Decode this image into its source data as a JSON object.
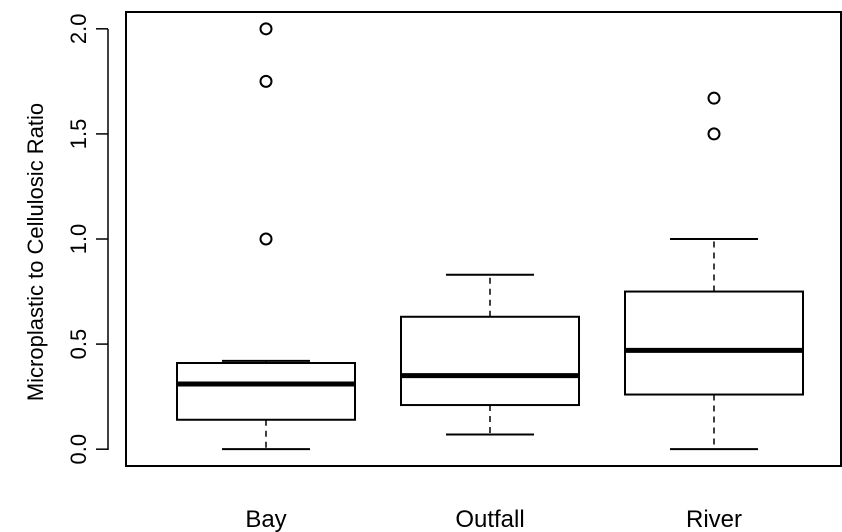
{
  "chart_data": {
    "type": "boxplot",
    "title": "",
    "xlabel": "",
    "ylabel": "Microplastic to Cellulosic Ratio",
    "ylim": [
      -0.08,
      2.08
    ],
    "yticks": [
      0.0,
      0.5,
      1.0,
      1.5,
      2.0
    ],
    "ytick_labels": [
      "0.0",
      "0.5",
      "1.0",
      "1.5",
      "2.0"
    ],
    "grid": false,
    "legend": "none",
    "categories": [
      "Bay",
      "Outfall",
      "River"
    ],
    "boxes": [
      {
        "category": "Bay",
        "whisker_low": 0.0,
        "q1": 0.14,
        "median": 0.31,
        "q3": 0.41,
        "whisker_high": 0.42,
        "outliers": [
          1.0,
          1.75,
          2.0
        ]
      },
      {
        "category": "Outfall",
        "whisker_low": 0.07,
        "q1": 0.21,
        "median": 0.35,
        "q3": 0.63,
        "whisker_high": 0.83,
        "outliers": []
      },
      {
        "category": "River",
        "whisker_low": 0.0,
        "q1": 0.26,
        "median": 0.47,
        "q3": 0.75,
        "whisker_high": 1.0,
        "outliers": [
          1.5,
          1.67
        ]
      }
    ],
    "colors": {
      "stroke": "#000000",
      "background": "#ffffff"
    }
  }
}
